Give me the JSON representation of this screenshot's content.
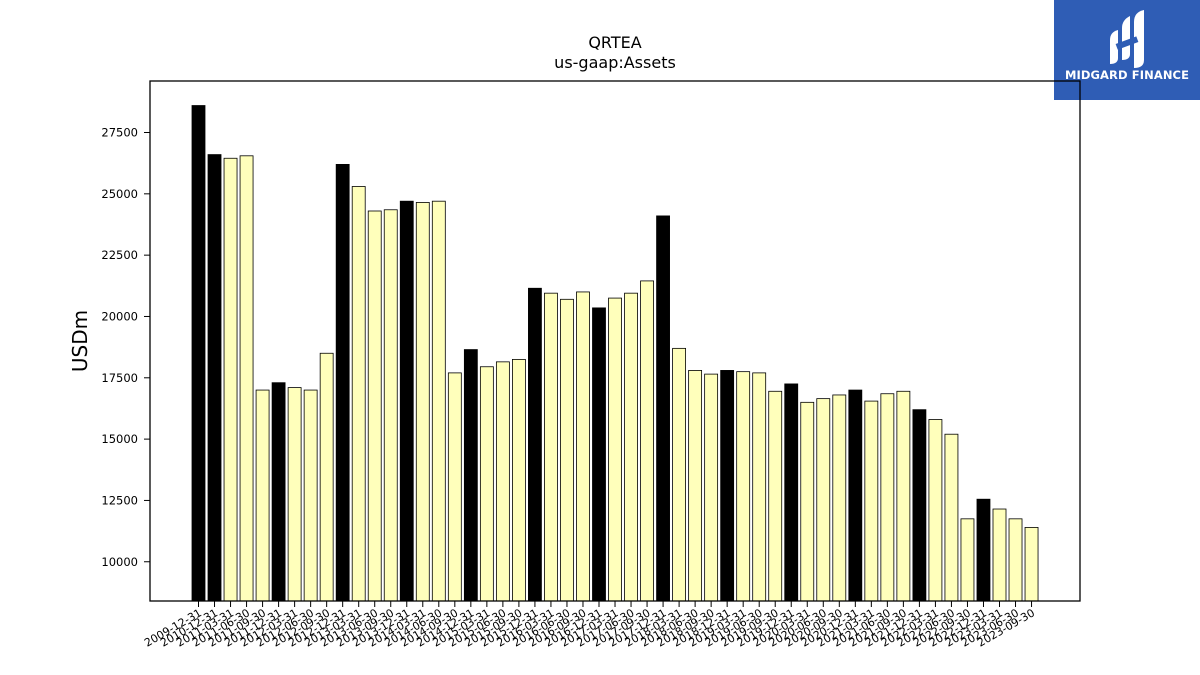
{
  "brand": {
    "name": "MIDGARD FINANCE",
    "color": "#2f5db5"
  },
  "chart_data": {
    "type": "bar",
    "title": "QRTEA",
    "subtitle": "us-gaap:Assets",
    "xlabel": "",
    "ylabel": "USDm",
    "ylim": [
      8400,
      29600
    ],
    "yticks": [
      10000,
      12500,
      15000,
      17500,
      20000,
      22500,
      25000,
      27500
    ],
    "grid": false,
    "colors": {
      "annual": "#000000",
      "quarterly": "#ffffbb"
    },
    "categories": [
      "2009-12-31",
      "2010-12-31",
      "2011-03-31",
      "2011-06-30",
      "2011-09-30",
      "2011-12-31",
      "2012-03-31",
      "2012-06-30",
      "2012-09-30",
      "2012-12-31",
      "2013-03-31",
      "2013-06-30",
      "2013-09-30",
      "2013-12-31",
      "2014-03-31",
      "2014-06-30",
      "2014-09-30",
      "2014-12-31",
      "2015-03-31",
      "2015-06-30",
      "2015-09-30",
      "2015-12-31",
      "2016-03-31",
      "2016-06-30",
      "2016-09-30",
      "2016-12-31",
      "2017-03-31",
      "2017-06-30",
      "2017-09-30",
      "2017-12-31",
      "2018-03-31",
      "2018-06-30",
      "2018-09-30",
      "2018-12-31",
      "2019-03-31",
      "2019-06-30",
      "2019-09-30",
      "2019-12-31",
      "2020-03-31",
      "2020-06-30",
      "2020-09-30",
      "2020-12-31",
      "2021-03-31",
      "2021-06-30",
      "2021-09-30",
      "2021-12-31",
      "2022-03-31",
      "2022-06-30",
      "2022-09-30",
      "2022-12-31",
      "2023-03-31",
      "2023-06-30",
      "2023-09-30"
    ],
    "values": [
      28600,
      26600,
      26450,
      26550,
      17000,
      17300,
      17100,
      17000,
      18500,
      26200,
      25300,
      24300,
      24350,
      24700,
      24650,
      24700,
      17700,
      18650,
      17950,
      18150,
      18250,
      21150,
      20950,
      20700,
      21000,
      20350,
      20750,
      20950,
      21450,
      24100,
      18700,
      17800,
      17650,
      17800,
      17750,
      17700,
      16950,
      17250,
      16500,
      16650,
      16800,
      17000,
      16550,
      16850,
      16950,
      16200,
      15800,
      15200,
      11750,
      12550,
      12150,
      11750,
      11400
    ],
    "annual": [
      true,
      true,
      false,
      false,
      false,
      true,
      false,
      false,
      false,
      true,
      false,
      false,
      false,
      true,
      false,
      false,
      false,
      true,
      false,
      false,
      false,
      true,
      false,
      false,
      false,
      true,
      false,
      false,
      false,
      true,
      false,
      false,
      false,
      true,
      false,
      false,
      false,
      true,
      false,
      false,
      false,
      true,
      false,
      false,
      false,
      true,
      false,
      false,
      false,
      true,
      false,
      false,
      false
    ]
  }
}
